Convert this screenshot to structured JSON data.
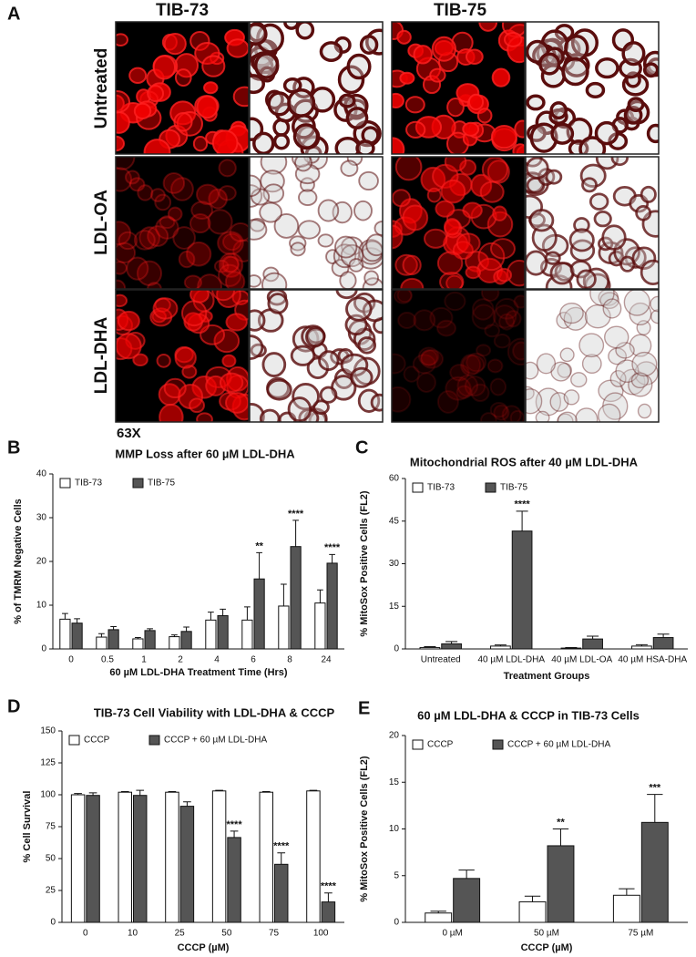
{
  "panel_a": {
    "letter": "A",
    "columns": [
      "TIB-73",
      "TIB-75"
    ],
    "rows": [
      "Untreated",
      "LDL-OA",
      "LDL-DHA"
    ],
    "magnification": "63X"
  },
  "chart_data": [
    {
      "type": "bar",
      "panel": "B",
      "title": "MMP Loss after 60 µM LDL-DHA",
      "ylabel": "% of TMRM Negative Cells",
      "xlabel": "60 µM LDL-DHA Treatment Time (Hrs)",
      "categories": [
        "0",
        "0.5",
        "1",
        "2",
        "4",
        "6",
        "8",
        "24"
      ],
      "ylim": [
        0,
        40
      ],
      "yticks": [
        0,
        10,
        20,
        30,
        40
      ],
      "series": [
        {
          "name": "TIB-73",
          "color": "#ffffff",
          "values": [
            6.8,
            2.7,
            2.3,
            2.8,
            6.6,
            6.6,
            9.8,
            10.5
          ],
          "errors": [
            1.3,
            0.8,
            0.3,
            0.4,
            1.8,
            3,
            5,
            3
          ]
        },
        {
          "name": "TIB-75",
          "color": "#555555",
          "values": [
            5.9,
            4.4,
            4.2,
            4.0,
            7.6,
            16,
            23.4,
            19.6
          ],
          "errors": [
            1,
            0.7,
            0.4,
            1,
            1.5,
            6,
            6,
            2
          ]
        }
      ],
      "annotations": [
        {
          "text": "**",
          "category": "6"
        },
        {
          "text": "****",
          "category": "8"
        },
        {
          "text": "****",
          "category": "24"
        }
      ]
    },
    {
      "type": "bar",
      "panel": "C",
      "title": "Mitochondrial ROS after 40 µM LDL-DHA",
      "ylabel": "% MitoSox Positive Cells (FL2)",
      "xlabel": "Treatment Groups",
      "categories": [
        "Untreated",
        "40 µM LDL-DHA",
        "40 µM LDL-OA",
        "40 µM HSA-DHA"
      ],
      "ylim": [
        0,
        60
      ],
      "yticks": [
        0,
        15,
        30,
        45,
        60
      ],
      "series": [
        {
          "name": "TIB-73",
          "color": "#ffffff",
          "values": [
            0.5,
            1,
            0.3,
            1
          ],
          "errors": [
            0.3,
            0.4,
            0.2,
            0.5
          ]
        },
        {
          "name": "TIB-75",
          "color": "#555555",
          "values": [
            1.8,
            41.5,
            3.5,
            4
          ],
          "errors": [
            0.8,
            7,
            1,
            1.2
          ]
        }
      ],
      "annotations": [
        {
          "text": "****",
          "category": "40 µM LDL-DHA"
        }
      ]
    },
    {
      "type": "bar",
      "panel": "D",
      "title": "TIB-73 Cell Viability with LDL-DHA & CCCP",
      "ylabel": "% Cell Survival",
      "xlabel": "CCCP (µM)",
      "categories": [
        "0",
        "10",
        "25",
        "50",
        "75",
        "100"
      ],
      "ylim": [
        0,
        150
      ],
      "yticks": [
        0,
        25,
        50,
        75,
        100,
        125,
        150
      ],
      "series": [
        {
          "name": "CCCP",
          "color": "#ffffff",
          "values": [
            100,
            102,
            102,
            103,
            102,
            103
          ],
          "errors": [
            1,
            0.5,
            0.5,
            0.5,
            0.5,
            0.5
          ]
        },
        {
          "name": "CCCP + 60 µM LDL-DHA",
          "color": "#555555",
          "values": [
            99.5,
            99.5,
            91,
            66.5,
            45.5,
            16
          ],
          "errors": [
            2,
            4,
            3.5,
            5,
            9,
            7
          ]
        }
      ],
      "annotations": [
        {
          "text": "****",
          "category": "50"
        },
        {
          "text": "****",
          "category": "75"
        },
        {
          "text": "****",
          "category": "100"
        }
      ]
    },
    {
      "type": "bar",
      "panel": "E",
      "title": "60 µM LDL-DHA & CCCP in TIB-73 Cells",
      "ylabel": "% MitoSox Positive Cells (FL2)",
      "xlabel": "CCCP (µM)",
      "categories": [
        "0 µM",
        "50 µM",
        "75 µM"
      ],
      "ylim": [
        0,
        20
      ],
      "yticks": [
        0,
        5,
        10,
        15,
        20
      ],
      "series": [
        {
          "name": "CCCP",
          "color": "#ffffff",
          "values": [
            1,
            2.2,
            2.9
          ],
          "errors": [
            0.2,
            0.6,
            0.7
          ]
        },
        {
          "name": "CCCP + 60 µM LDL-DHA",
          "color": "#555555",
          "values": [
            4.7,
            8.2,
            10.7
          ],
          "errors": [
            0.9,
            1.8,
            3
          ]
        }
      ],
      "annotations": [
        {
          "text": "**",
          "category": "50 µM"
        },
        {
          "text": "***",
          "category": "75 µM"
        }
      ]
    }
  ]
}
